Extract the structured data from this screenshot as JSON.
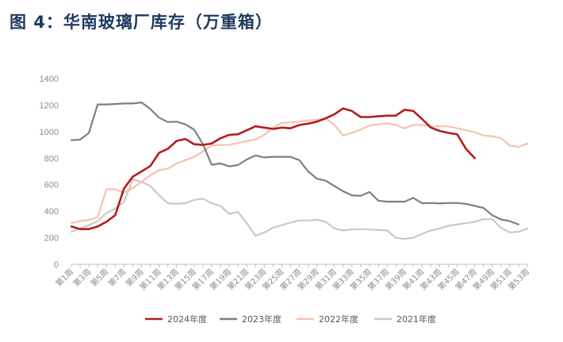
{
  "title": "图 4：华南玻璃厂库存（万重箱）",
  "chart_data": {
    "type": "line",
    "title": "图 4：华南玻璃厂库存（万重箱）",
    "ylim": [
      0,
      1400
    ],
    "yticks": [
      0,
      200,
      400,
      600,
      800,
      1000,
      1200,
      1400
    ],
    "x": [
      "第1周",
      "第2周",
      "第3周",
      "第4周",
      "第5周",
      "第6周",
      "第7周",
      "第8周",
      "第9周",
      "第10周",
      "第11周",
      "第12周",
      "第13周",
      "第14周",
      "第15周",
      "第16周",
      "第17周",
      "第18周",
      "第19周",
      "第20周",
      "第21周",
      "第22周",
      "第23周",
      "第24周",
      "第25周",
      "第26周",
      "第27周",
      "第28周",
      "第29周",
      "第30周",
      "第31周",
      "第32周",
      "第33周",
      "第34周",
      "第35周",
      "第36周",
      "第37周",
      "第38周",
      "第39周",
      "第40周",
      "第41周",
      "第42周",
      "第43周",
      "第44周",
      "第45周",
      "第46周",
      "第47周",
      "第48周",
      "第49周",
      "第50周",
      "第51周",
      "第52周",
      "第53周"
    ],
    "xtick_labels": [
      "第1周",
      "第3周",
      "第5周",
      "第7周",
      "第9周",
      "第11周",
      "第13周",
      "第15周",
      "第17周",
      "第19周",
      "第21周",
      "第23周",
      "第25周",
      "第27周",
      "第29周",
      "第31周",
      "第33周",
      "第35周",
      "第37周",
      "第39周",
      "第41周",
      "第43周",
      "第45周",
      "第47周",
      "第49周",
      "第51周",
      "第53周"
    ],
    "grid": false,
    "legend_position": "bottom",
    "series": [
      {
        "name": "2024年度",
        "color": "#b71c1c",
        "width": 2.6,
        "values": [
          285,
          265,
          265,
          285,
          320,
          370,
          570,
          660,
          700,
          740,
          840,
          870,
          930,
          945,
          905,
          900,
          910,
          950,
          975,
          980,
          1010,
          1040,
          1030,
          1020,
          1030,
          1025,
          1050,
          1060,
          1075,
          1100,
          1130,
          1175,
          1155,
          1110,
          1110,
          1115,
          1120,
          1120,
          1165,
          1155,
          1095,
          1030,
          1005,
          990,
          980,
          870,
          800,
          null,
          null,
          null,
          null,
          null,
          null
        ]
      },
      {
        "name": "2023年度",
        "color": "#7f7f7f",
        "width": 2.2,
        "values": [
          935,
          940,
          990,
          1205,
          1205,
          1208,
          1212,
          1212,
          1220,
          1170,
          1105,
          1072,
          1075,
          1055,
          1015,
          905,
          750,
          760,
          738,
          748,
          790,
          820,
          805,
          810,
          810,
          810,
          785,
          700,
          645,
          630,
          590,
          550,
          520,
          515,
          545,
          480,
          472,
          472,
          472,
          500,
          460,
          462,
          458,
          462,
          462,
          455,
          440,
          425,
          370,
          338,
          325,
          300,
          null
        ]
      },
      {
        "name": "2022年度",
        "color": "#f4c2b0",
        "width": 2.2,
        "values": [
          310,
          325,
          335,
          355,
          565,
          565,
          540,
          575,
          620,
          670,
          710,
          720,
          760,
          785,
          810,
          850,
          895,
          900,
          900,
          915,
          930,
          940,
          975,
          1030,
          1065,
          1070,
          1075,
          1085,
          1090,
          1100,
          1050,
          970,
          990,
          1015,
          1045,
          1055,
          1062,
          1050,
          1025,
          1050,
          1050,
          1040,
          1040,
          1040,
          1025,
          1010,
          995,
          970,
          965,
          950,
          895,
          885,
          910
        ]
      },
      {
        "name": "2021年度",
        "color": "#c9c9c9",
        "width": 2.2,
        "values": [
          245,
          270,
          295,
          325,
          385,
          420,
          470,
          640,
          620,
          590,
          520,
          460,
          455,
          460,
          485,
          495,
          460,
          440,
          380,
          395,
          310,
          215,
          240,
          275,
          295,
          315,
          330,
          330,
          335,
          320,
          270,
          255,
          262,
          265,
          262,
          258,
          255,
          200,
          190,
          200,
          230,
          255,
          270,
          290,
          300,
          310,
          320,
          340,
          340,
          275,
          240,
          245,
          270
        ]
      }
    ]
  }
}
